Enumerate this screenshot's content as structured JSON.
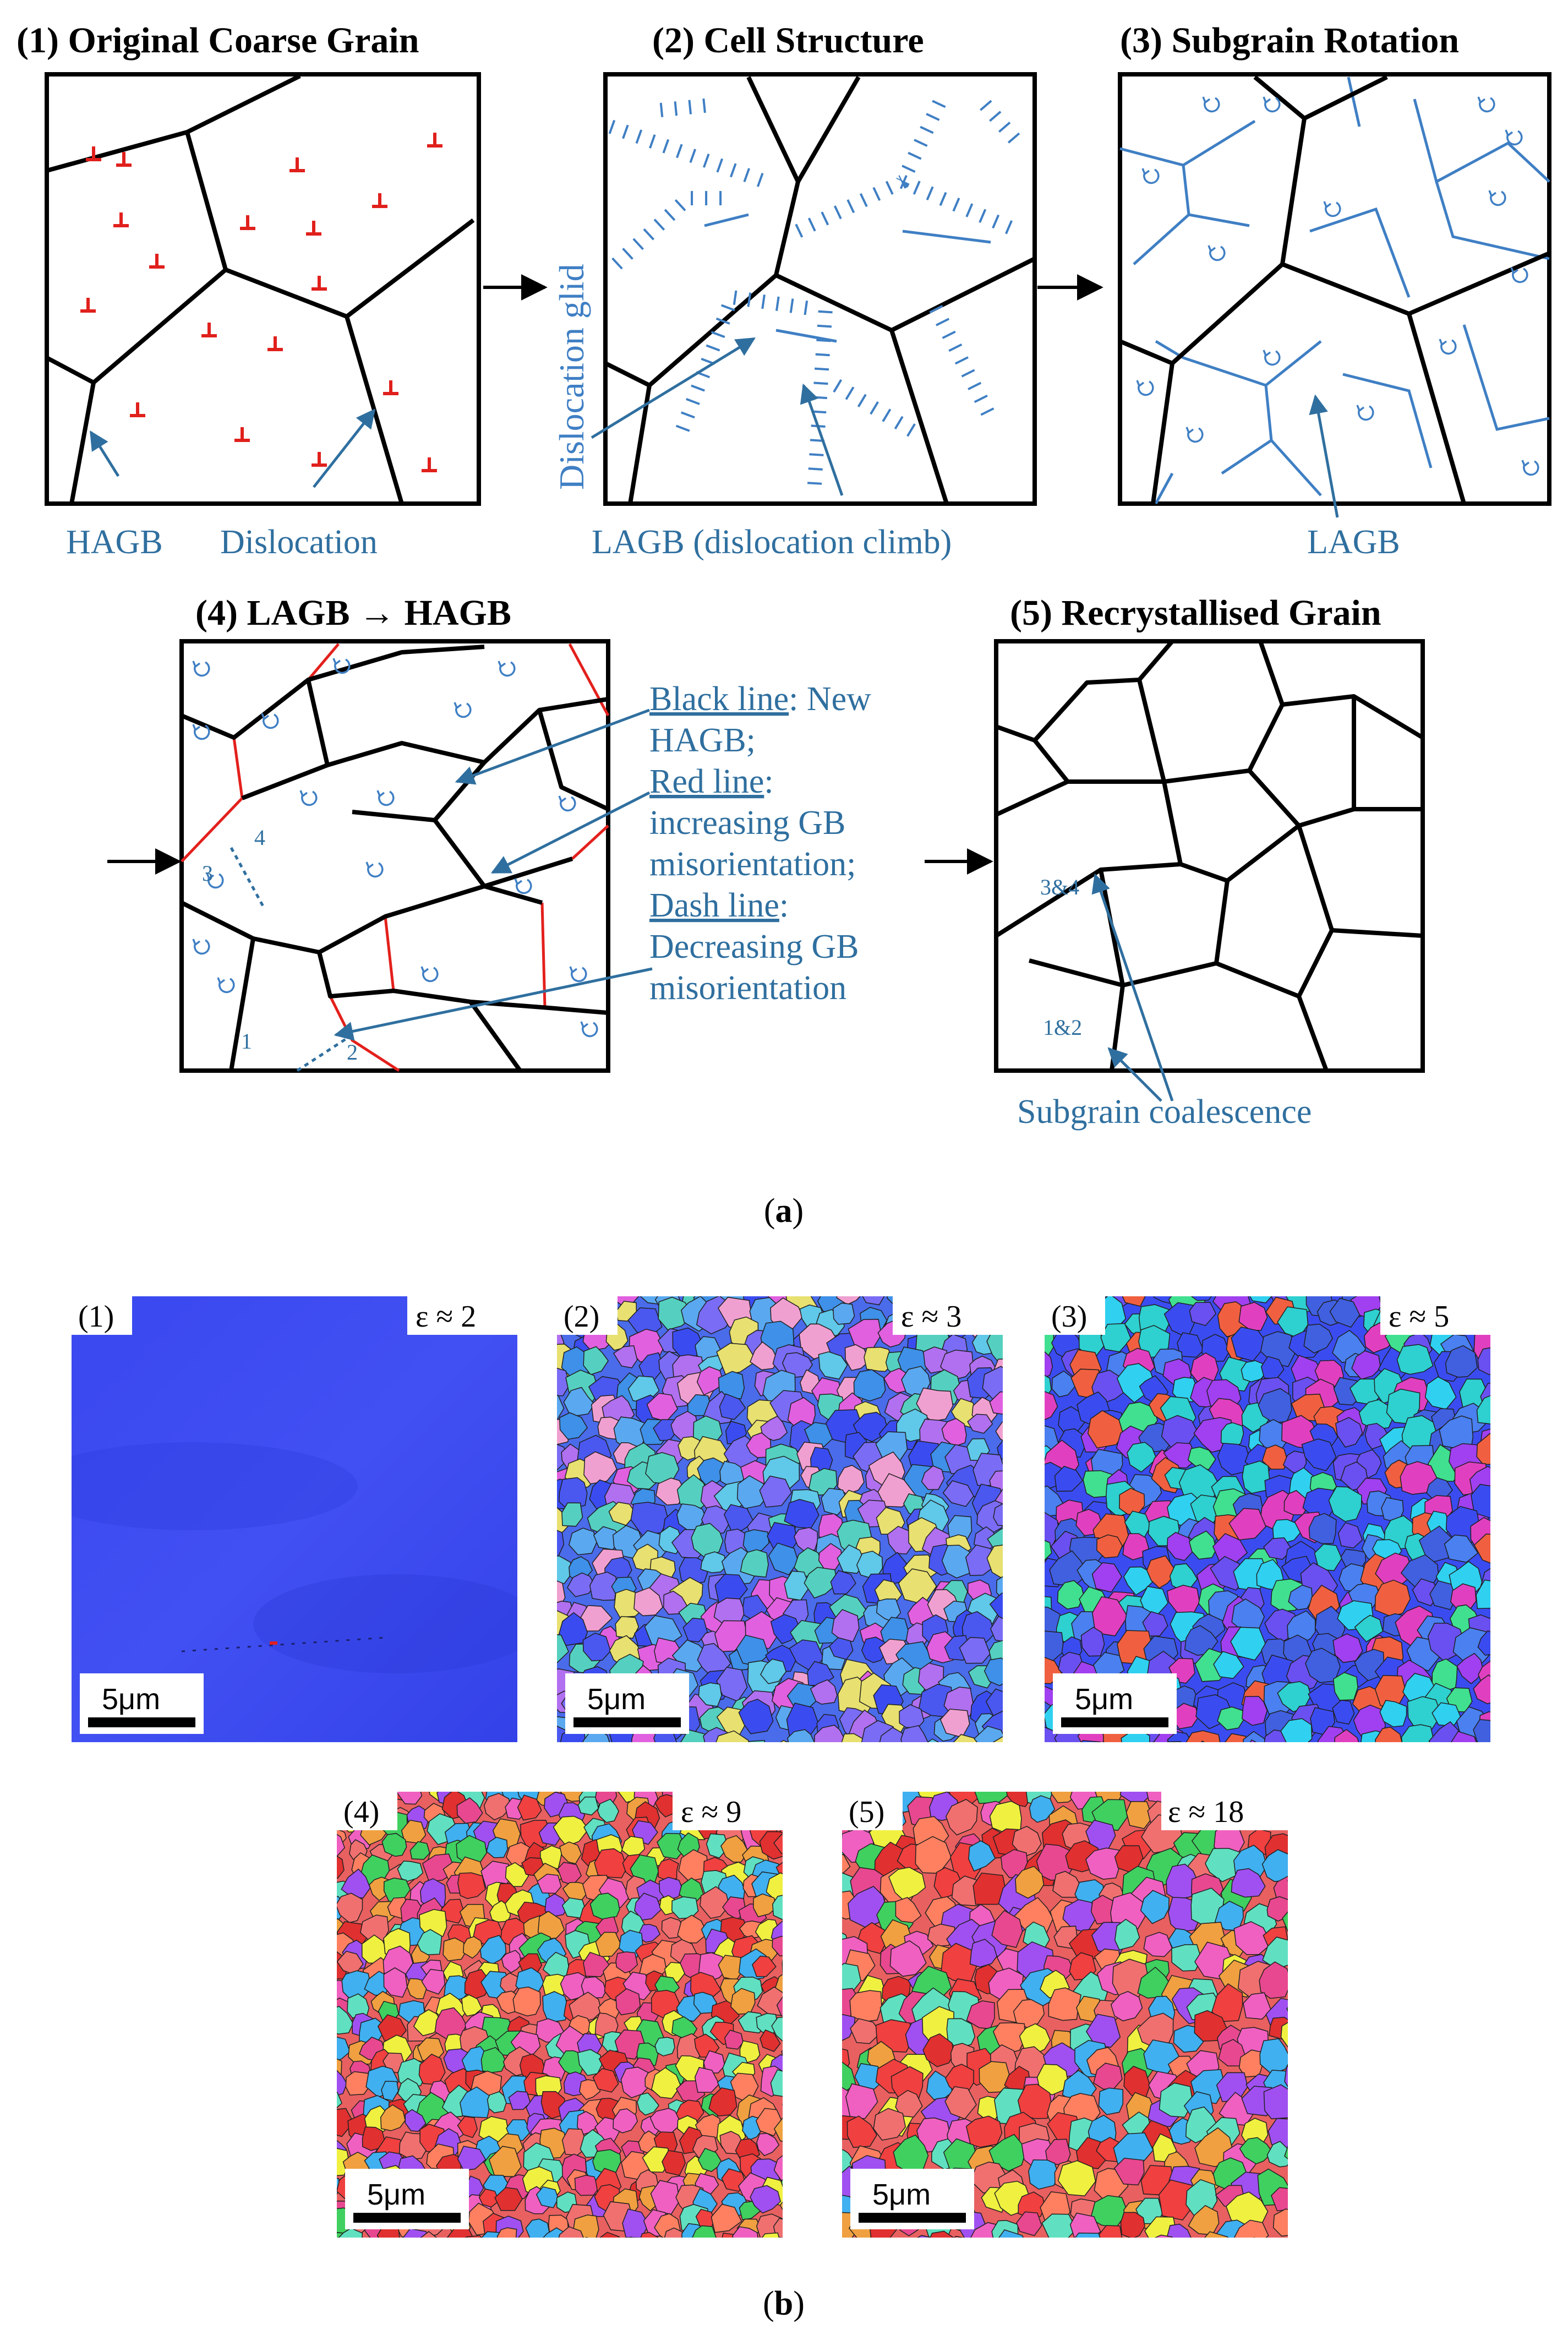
{
  "colors": {
    "grain_boundary": "#000000",
    "lagb": "#3f7fc4",
    "label": "#2f6f9f",
    "dislocation_red": "#e0201c",
    "increasing_misorientation_red": "#e3201c",
    "ebsd_blue": "#3a4cf0"
  },
  "panel_a": {
    "caption_open": "(",
    "caption_letter": "a",
    "caption_close": ")",
    "p1": {
      "title": "(1) Original Coarse Grain",
      "label_hagb": "HAGB",
      "label_dislocation": "Dislocation"
    },
    "p2": {
      "title": "(2) Cell Structure",
      "label_glide": "Dislocation glid",
      "label_lagb": "LAGB (dislocation climb)"
    },
    "p3": {
      "title": "(3) Subgrain Rotation",
      "label_lagb": "LAGB"
    },
    "p4": {
      "title": "(4) LAGB → HAGB",
      "grain_labels": [
        "1",
        "2",
        "3",
        "4"
      ],
      "legend": {
        "black_key": "Black line",
        "black_text": ": New",
        "black_text2": "HAGB;",
        "red_key": "Red line",
        "red_text": ":",
        "red_text2": "increasing GB",
        "red_text3": "misorientation;",
        "dash_key": "Dash line",
        "dash_text": ":",
        "dash_text2": "Decreasing GB",
        "dash_text3": "misorientation"
      }
    },
    "p5": {
      "title": "(5) Recrystallised Grain",
      "label_34": "3&4",
      "label_12": "1&2",
      "label_coalescence": "Subgrain coalescence"
    }
  },
  "panel_b": {
    "caption_open": "(",
    "caption_letter": "b",
    "caption_close": ")",
    "scale_bar": "5μm",
    "maps": [
      {
        "label": "(1)",
        "strain": "ε ≈ 2"
      },
      {
        "label": "(2)",
        "strain": "ε ≈ 3"
      },
      {
        "label": "(3)",
        "strain": "ε ≈ 5"
      },
      {
        "label": "(4)",
        "strain": "ε ≈ 9"
      },
      {
        "label": "(5)",
        "strain": "ε ≈ 18"
      }
    ]
  }
}
